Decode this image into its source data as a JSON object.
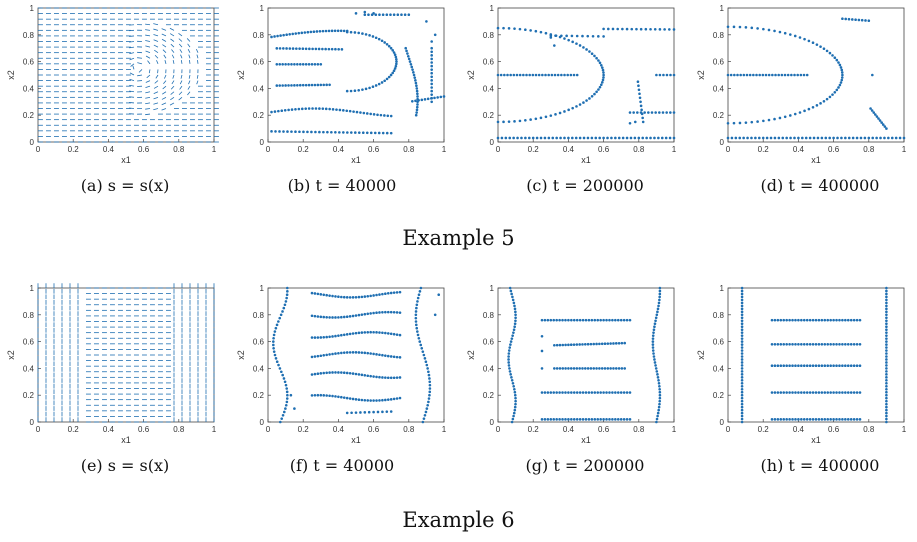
{
  "examples": [
    {
      "label": "Example 5",
      "panels": [
        {
          "caption": "(a) s = s(x)",
          "type": "quiver"
        },
        {
          "caption": "(b) t = 40000",
          "type": "scatter"
        },
        {
          "caption": "(c) t = 200000",
          "type": "scatter"
        },
        {
          "caption": "(d) t = 400000",
          "type": "scatter"
        }
      ]
    },
    {
      "label": "Example 6",
      "panels": [
        {
          "caption": "(e) s = s(x)",
          "type": "quiver"
        },
        {
          "caption": "(f) t = 40000",
          "type": "scatter"
        },
        {
          "caption": "(g) t = 200000",
          "type": "scatter"
        },
        {
          "caption": "(h) t = 400000",
          "type": "scatter"
        }
      ]
    }
  ],
  "axes": {
    "xlabel": "x1",
    "ylabel": "x2",
    "xticks": [
      "0",
      "0.2",
      "0.4",
      "0.6",
      "0.8",
      "1"
    ],
    "yticks": [
      "0",
      "0.2",
      "0.4",
      "0.6",
      "0.8",
      "1"
    ],
    "xlim": [
      0,
      1
    ],
    "ylim": [
      0,
      1
    ]
  },
  "colors": {
    "marker": "#1f6fb2",
    "axis": "#444444"
  },
  "chart_data": [
    {
      "type": "scatter",
      "panel": "a",
      "description": "quiver field",
      "xlim": [
        0,
        1
      ],
      "ylim": [
        0,
        1
      ]
    },
    {
      "type": "scatter",
      "panel": "b",
      "xlim": [
        0,
        1
      ],
      "ylim": [
        0,
        1
      ]
    },
    {
      "type": "scatter",
      "panel": "c",
      "xlim": [
        0,
        1
      ],
      "ylim": [
        0,
        1
      ]
    },
    {
      "type": "scatter",
      "panel": "d",
      "xlim": [
        0,
        1
      ],
      "ylim": [
        0,
        1
      ]
    },
    {
      "type": "scatter",
      "panel": "e",
      "xlim": [
        0,
        1
      ],
      "ylim": [
        0,
        1
      ]
    },
    {
      "type": "scatter",
      "panel": "f",
      "xlim": [
        0,
        1
      ],
      "ylim": [
        0,
        1
      ]
    },
    {
      "type": "scatter",
      "panel": "g",
      "xlim": [
        0,
        1
      ],
      "ylim": [
        0,
        1
      ]
    },
    {
      "type": "scatter",
      "panel": "h",
      "xlim": [
        0,
        1
      ],
      "ylim": [
        0,
        1
      ]
    }
  ]
}
